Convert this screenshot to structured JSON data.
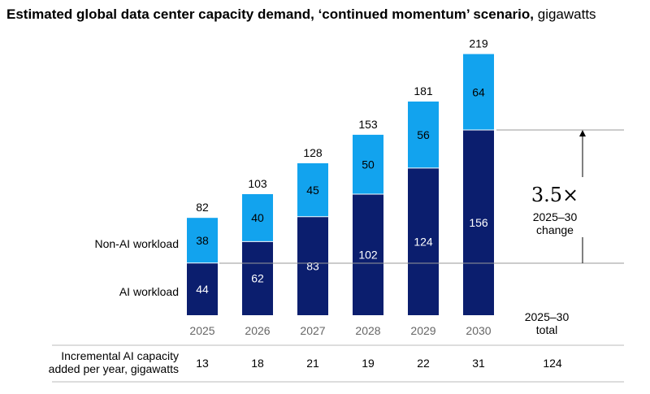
{
  "title": "Estimated global data center capacity demand, ‘continued momentum’ scenario,",
  "title_unit": "gigawatts",
  "colors": {
    "ai": "#0b1e6e",
    "non_ai": "#12a3ee",
    "axis_text": "#666666",
    "rule": "#999999"
  },
  "chart_data": {
    "type": "bar",
    "stacked": true,
    "categories": [
      "2025",
      "2026",
      "2027",
      "2028",
      "2029",
      "2030"
    ],
    "series": [
      {
        "name": "AI workload",
        "values": [
          44,
          62,
          83,
          102,
          124,
          156
        ]
      },
      {
        "name": "Non-AI workload",
        "values": [
          38,
          40,
          45,
          50,
          56,
          64
        ]
      }
    ],
    "totals": [
      "82",
      "103",
      "128",
      "153",
      "181",
      "219"
    ],
    "ylim": [
      0,
      219
    ],
    "legend_placement": "left"
  },
  "annotation": {
    "multiplier": "3.5×",
    "line1": "2025–30",
    "line2": "change"
  },
  "total_label": {
    "line1": "2025–30",
    "line2": "total"
  },
  "incremental": {
    "label_line1": "Incremental AI capacity",
    "label_line2": "added per year, gigawatts",
    "values": [
      "13",
      "18",
      "21",
      "19",
      "22",
      "31"
    ],
    "total": "124"
  }
}
